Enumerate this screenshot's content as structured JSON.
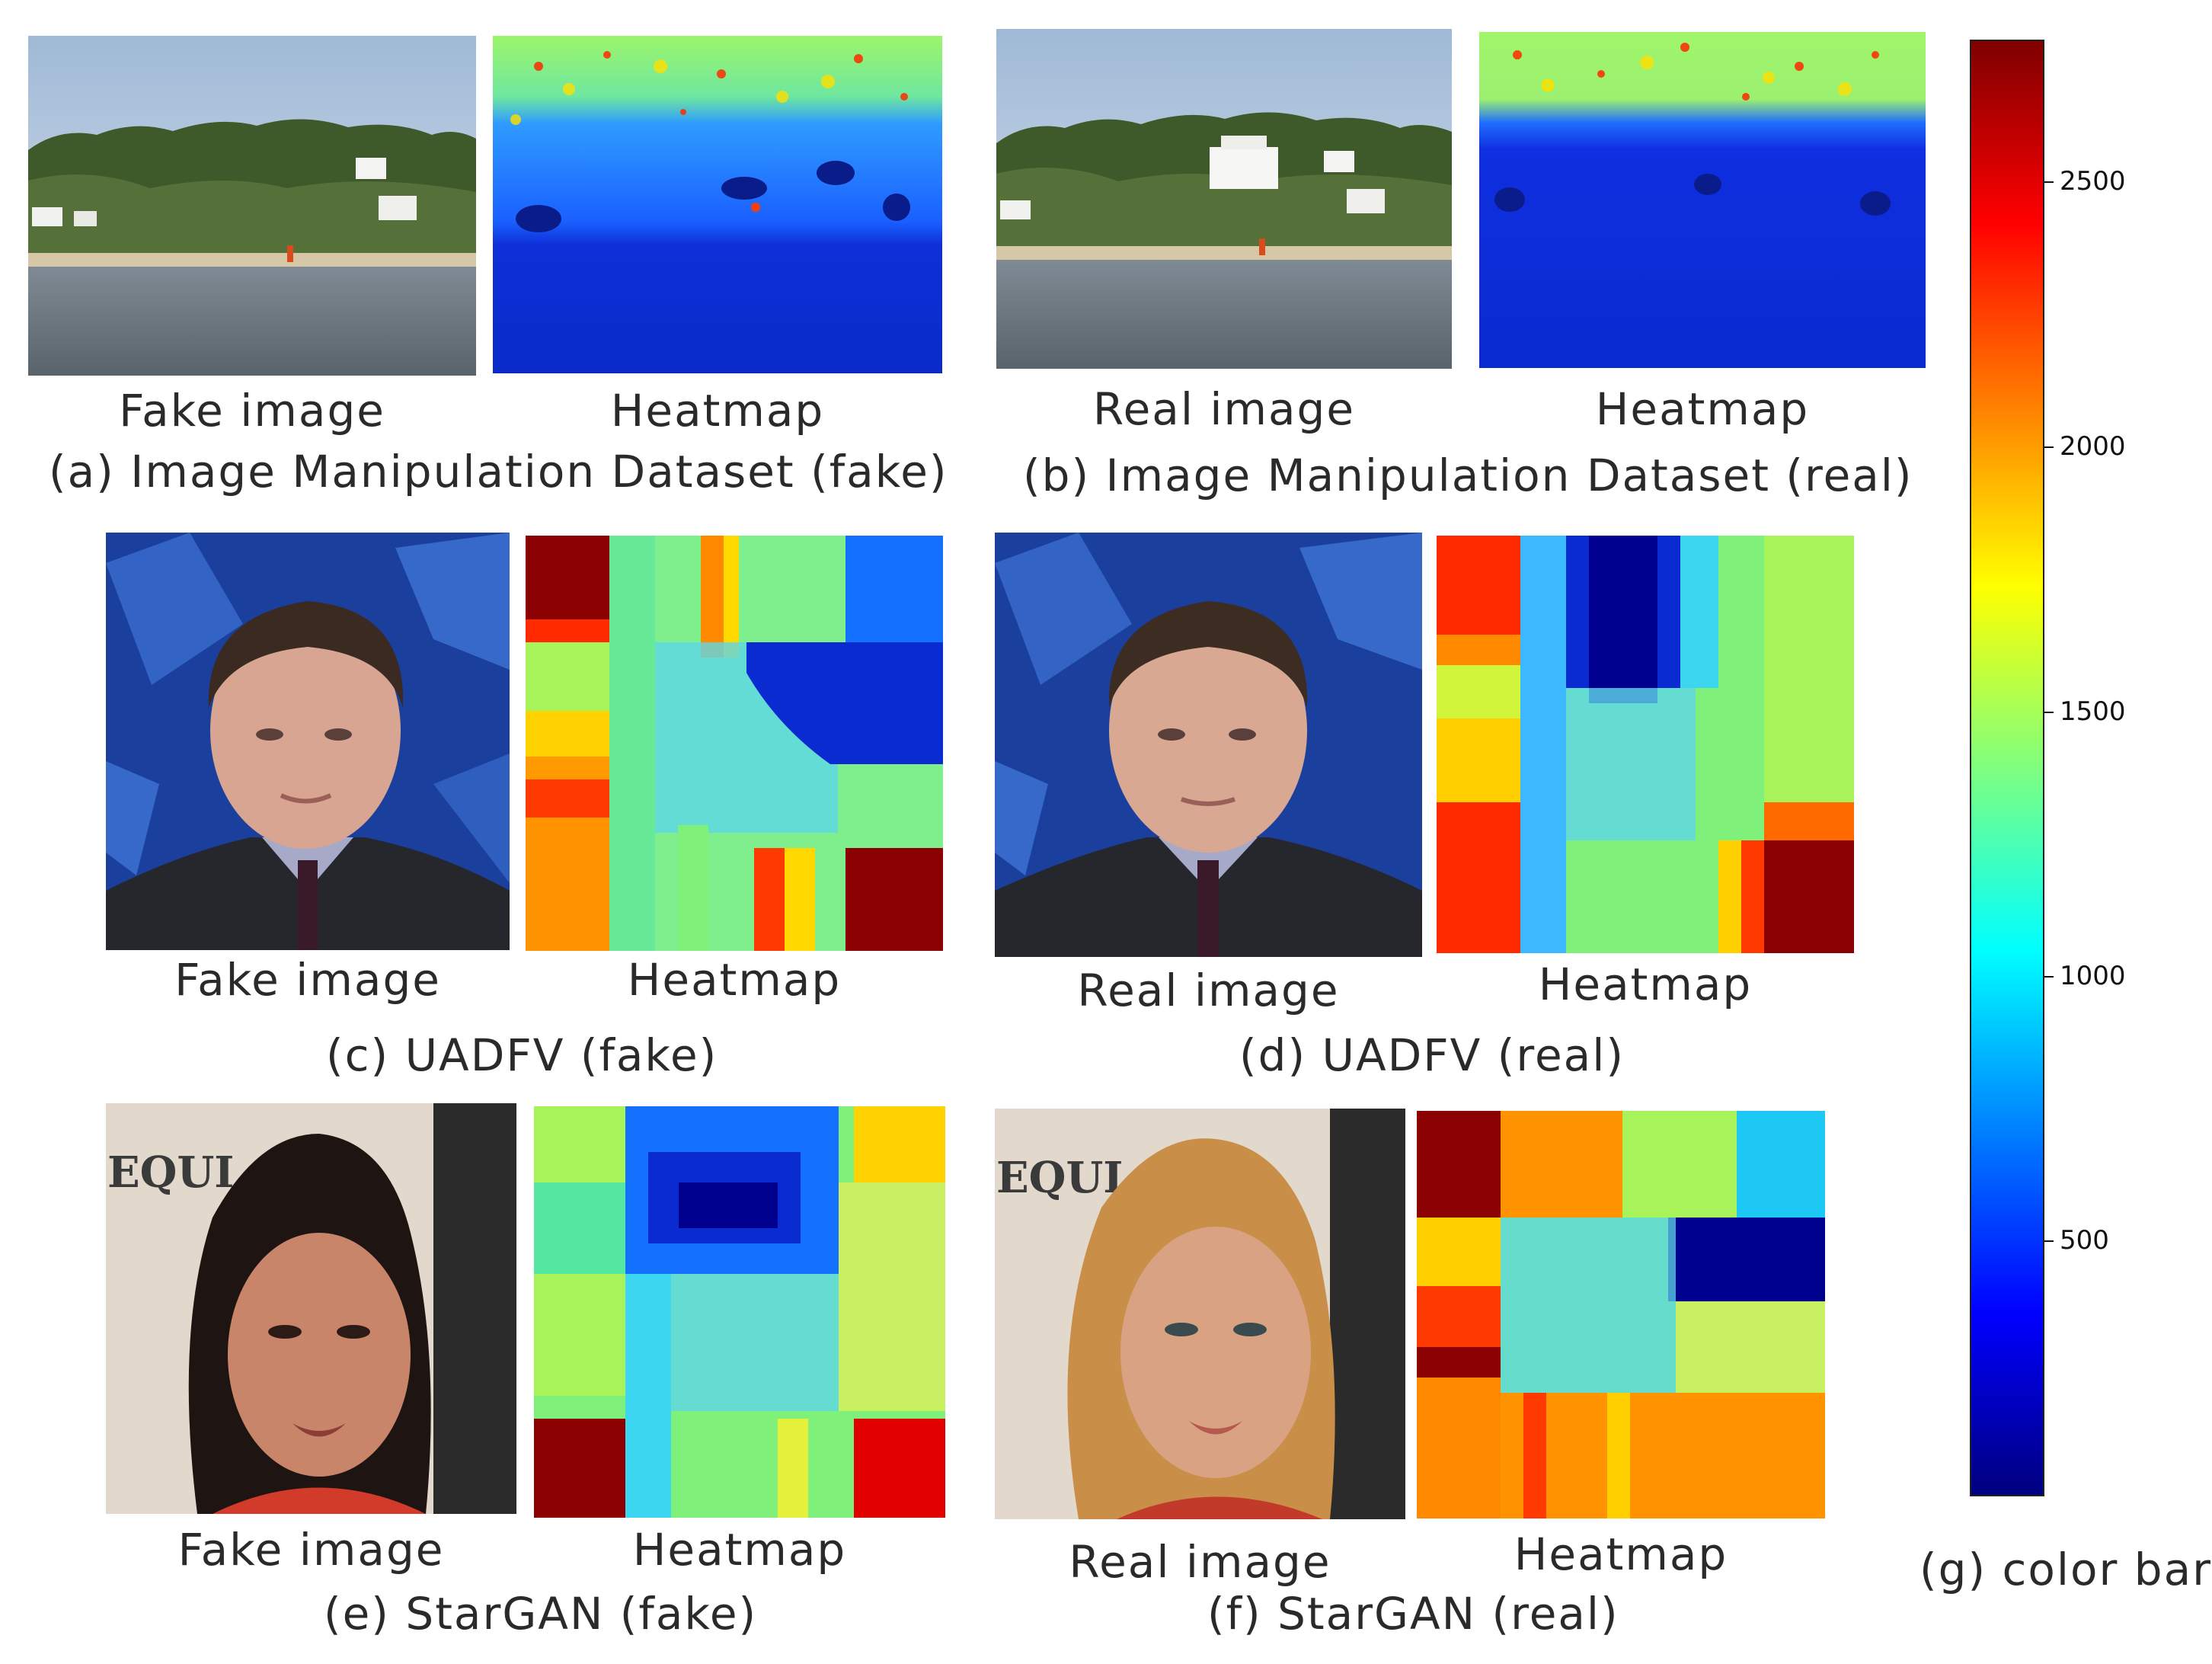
{
  "panels": [
    {
      "caption": "(a) Image Manipulation Dataset (fake)",
      "image_label": "Fake image",
      "heatmap_label": "Heatmap"
    },
    {
      "caption": "(b) Image Manipulation Dataset (real)",
      "image_label": "Real image",
      "heatmap_label": "Heatmap"
    },
    {
      "caption": "(c) UADFV (fake)",
      "image_label": "Fake image",
      "heatmap_label": "Heatmap"
    },
    {
      "caption": "(d) UADFV (real)",
      "image_label": "Real image",
      "heatmap_label": "Heatmap"
    },
    {
      "caption": "(e) StarGAN (fake)",
      "image_label": "Fake image",
      "heatmap_label": "Heatmap"
    },
    {
      "caption": "(f) StarGAN (real)",
      "image_label": "Real image",
      "heatmap_label": "Heatmap"
    }
  ],
  "colorbar": {
    "caption": "(g) color bar",
    "ticks": [
      "2500",
      "2000",
      "1500",
      "1000",
      "500"
    ],
    "colormap": "jet",
    "colors": [
      "#00007f",
      "#0000ff",
      "#007fff",
      "#00ffff",
      "#7fff7f",
      "#ffff00",
      "#ff7f00",
      "#ff0000",
      "#7f0000"
    ]
  }
}
